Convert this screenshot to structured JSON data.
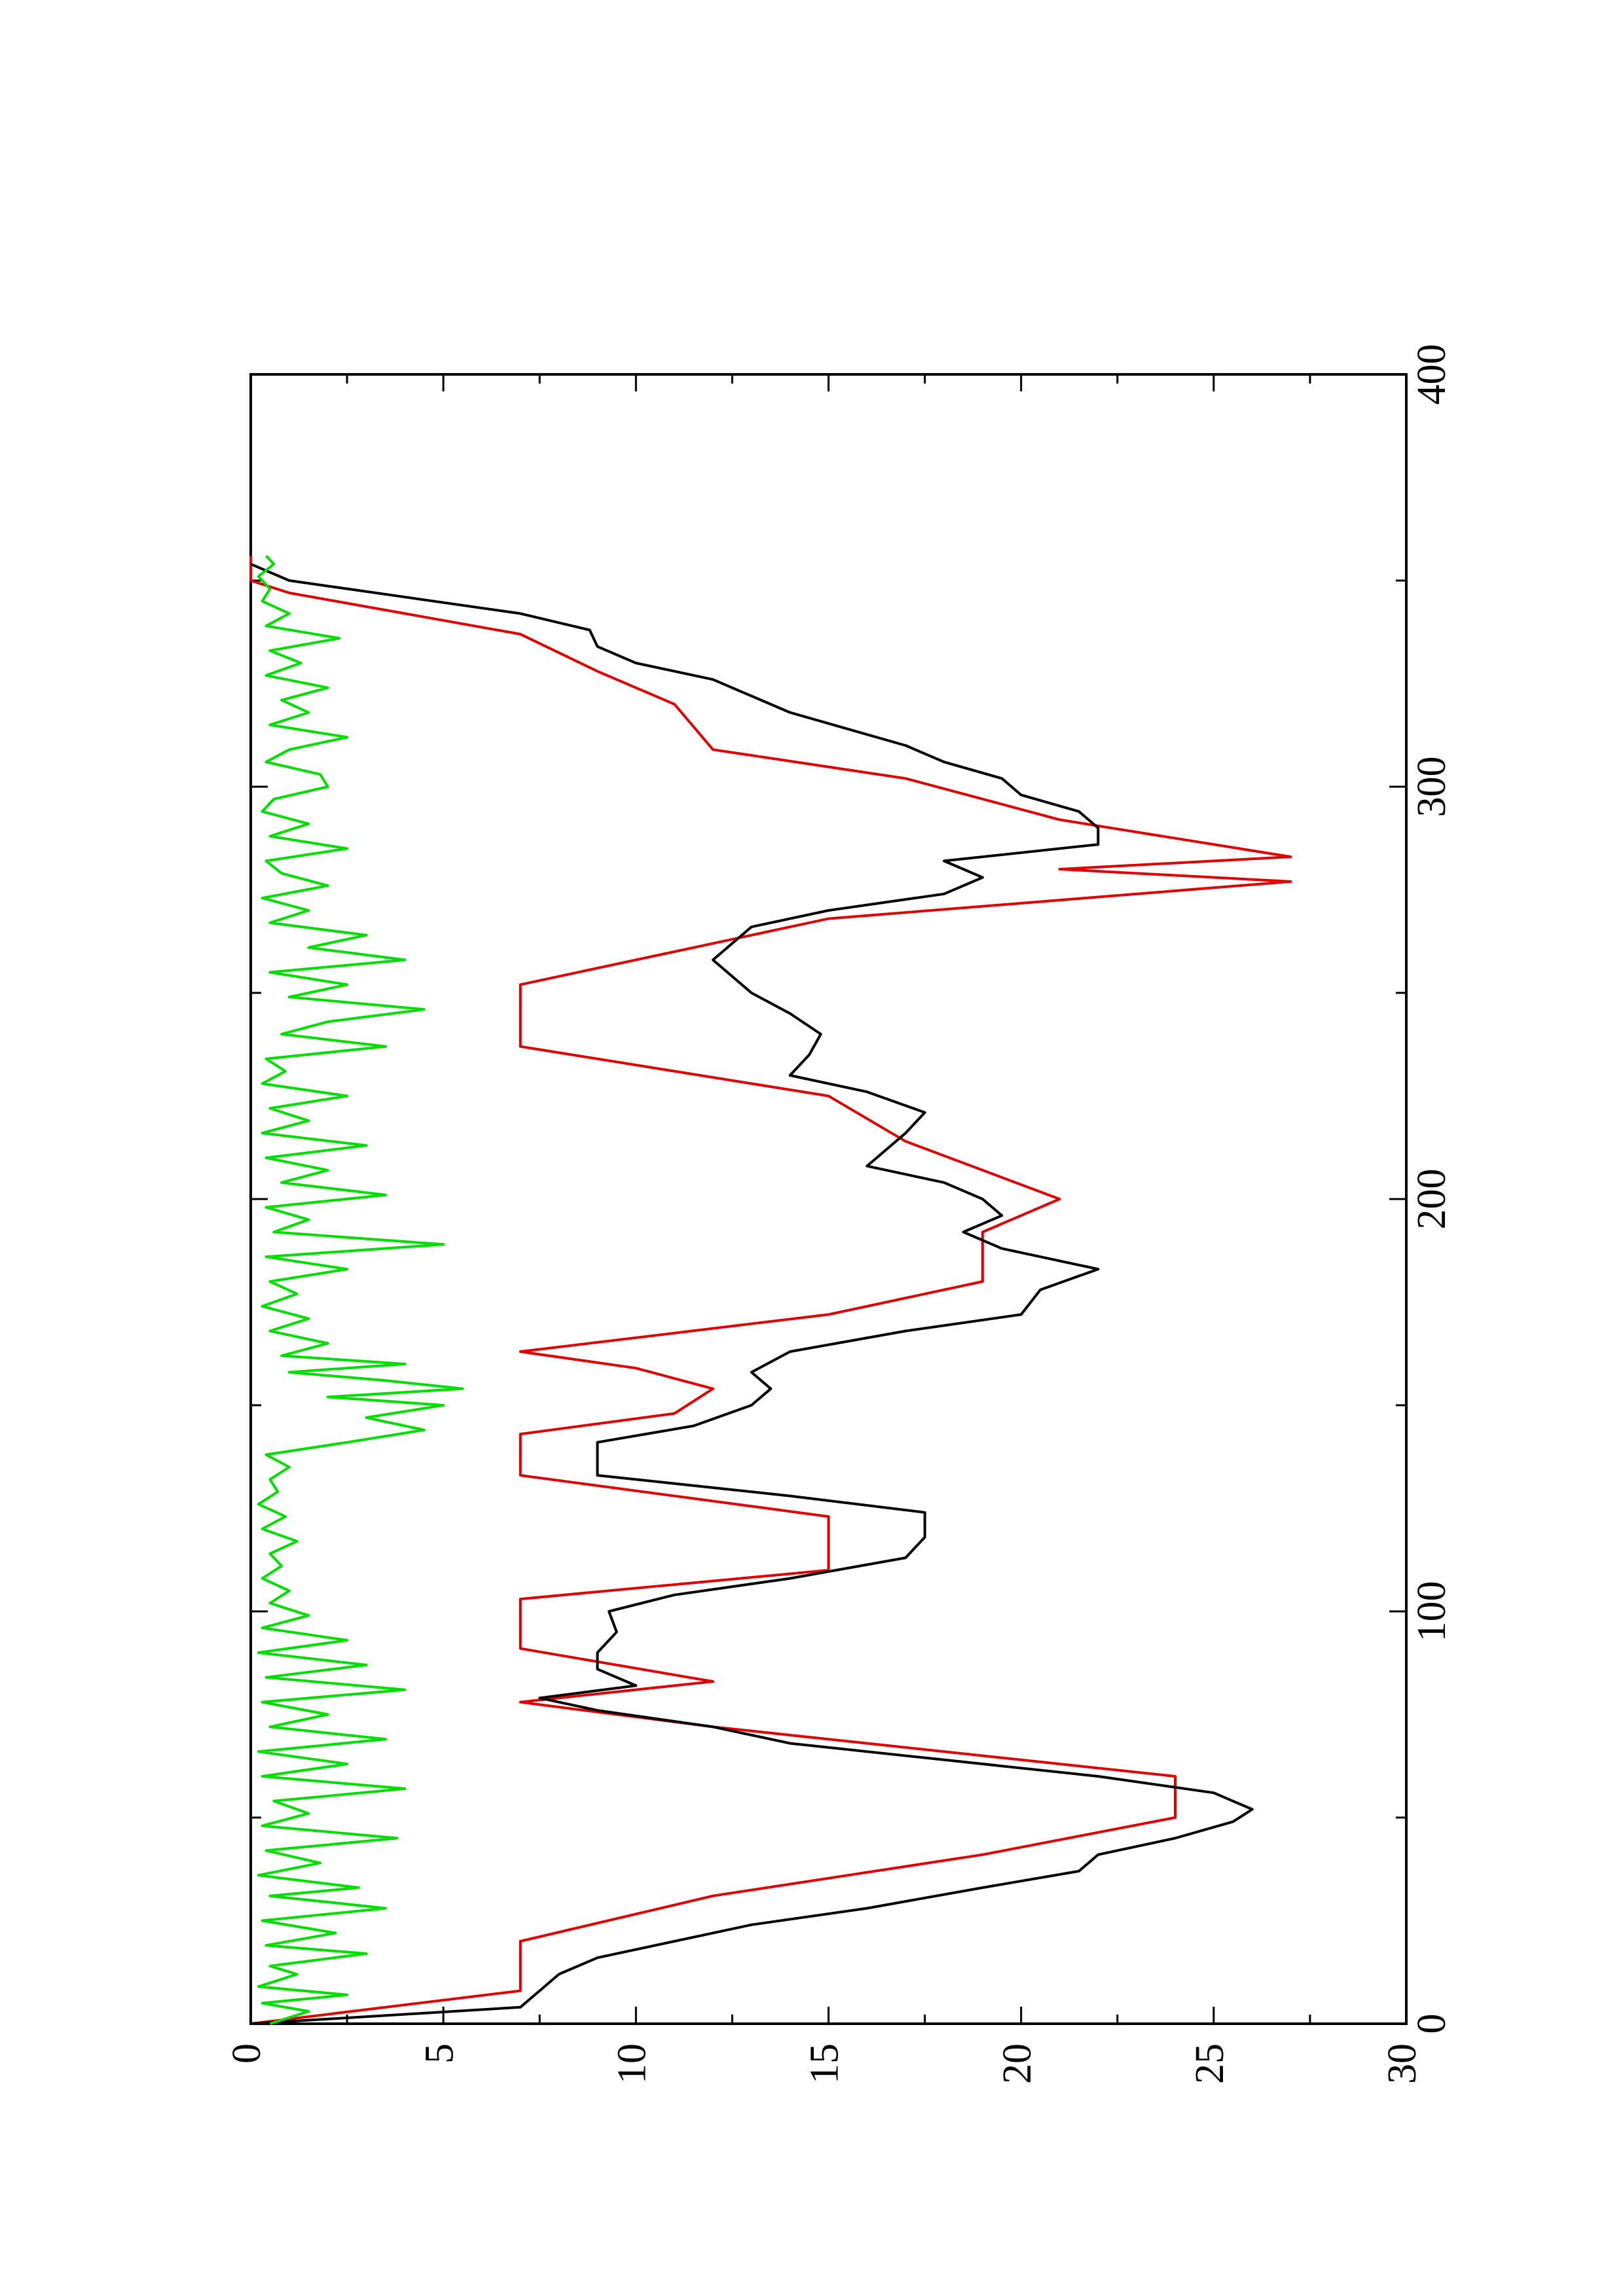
{
  "chart_data": {
    "type": "line",
    "orientation": "rotated 90 degrees counter-clockwise (x axis runs bottom-to-top, y axis runs left-to-right)",
    "title": "",
    "xlabel": "",
    "ylabel": "",
    "xlim": [
      0,
      400
    ],
    "ylim": [
      0,
      30
    ],
    "x_ticks": [
      0,
      100,
      200,
      300,
      400
    ],
    "y_ticks": [
      0,
      5,
      10,
      15,
      20,
      25,
      30
    ],
    "x_tick_labels": [
      "0",
      "100",
      "200",
      "300",
      "400"
    ],
    "y_tick_labels": [
      "0",
      "5",
      "10",
      "15",
      "20",
      "25",
      "30"
    ],
    "grid": false,
    "legend": "none",
    "series": [
      {
        "color": "#e00000",
        "x": [
          0,
          8,
          20,
          31,
          41,
          50,
          60,
          72,
          78,
          83,
          91,
          103,
          110,
          123,
          133,
          143,
          148,
          154,
          159,
          163,
          172,
          180,
          192,
          200,
          207,
          214,
          225,
          237,
          252,
          262,
          268,
          277,
          280,
          283,
          292,
          302,
          309,
          320,
          328,
          337,
          347,
          350,
          356
        ],
        "y": [
          0,
          7,
          7,
          12,
          19,
          24,
          24,
          12,
          7,
          12,
          7,
          7,
          15,
          15,
          7,
          7,
          11,
          12,
          10,
          7,
          15,
          19,
          19,
          21,
          19,
          17,
          15,
          7,
          7,
          12,
          15,
          27,
          21,
          27,
          21,
          17,
          12,
          11,
          9,
          7,
          1,
          0,
          0
        ]
      },
      {
        "color": "#000000",
        "x": [
          0,
          4,
          8,
          12,
          16,
          20,
          24,
          28,
          33,
          37,
          41,
          45,
          49,
          52,
          56,
          60,
          64,
          68,
          72,
          76,
          79,
          82,
          86,
          90,
          95,
          100,
          104,
          108,
          113,
          118,
          124,
          128,
          133,
          137,
          141,
          145,
          150,
          154,
          158,
          163,
          168,
          172,
          178,
          183,
          188,
          192,
          196,
          200,
          204,
          208,
          212,
          216,
          221,
          226,
          230,
          235,
          240,
          245,
          250,
          254,
          258,
          262,
          266,
          270,
          274,
          278,
          282,
          286,
          290,
          294,
          298,
          302,
          306,
          310,
          314,
          318,
          322,
          326,
          330,
          334,
          338,
          342,
          346,
          350,
          354
        ],
        "y": [
          0,
          7,
          7.5,
          8,
          9,
          11,
          13,
          16,
          19,
          21.5,
          22,
          24,
          25.5,
          26,
          25,
          22,
          18,
          14,
          12,
          9,
          7.5,
          10,
          9,
          9,
          9.5,
          9.3,
          11,
          14,
          17,
          17.5,
          17.5,
          14,
          9,
          9,
          9,
          11.5,
          13,
          13.5,
          13,
          14,
          17,
          20,
          20.5,
          22,
          19.5,
          18.5,
          19.5,
          19,
          18,
          16,
          16.5,
          17,
          17.5,
          16,
          14,
          14.5,
          14.8,
          14,
          13,
          12.5,
          12,
          12.5,
          13,
          15,
          18,
          19,
          18,
          22,
          22,
          21.5,
          20,
          19.5,
          18,
          17,
          15.5,
          14,
          13,
          12,
          10,
          9,
          8.8,
          7,
          4,
          1,
          0
        ]
      },
      {
        "color": "#00dd00",
        "x": [
          0,
          3,
          5,
          7,
          9,
          12,
          14,
          17,
          19,
          22,
          25,
          28,
          31,
          33,
          36,
          39,
          42,
          45,
          48,
          51,
          54,
          57,
          60,
          63,
          66,
          69,
          72,
          75,
          78,
          81,
          84,
          87,
          90,
          93,
          96,
          99,
          102,
          105,
          108,
          111,
          114,
          117,
          120,
          123,
          126,
          129,
          132,
          135,
          138,
          141,
          144,
          147,
          150,
          152,
          154,
          156,
          158,
          160,
          162,
          165,
          168,
          171,
          174,
          177,
          180,
          183,
          186,
          189,
          192,
          195,
          198,
          201,
          204,
          207,
          210,
          213,
          216,
          219,
          222,
          225,
          228,
          231,
          234,
          237,
          240,
          243,
          246,
          249,
          252,
          255,
          258,
          261,
          264,
          267,
          270,
          273,
          276,
          279,
          282,
          285,
          288,
          291,
          294,
          297,
          300,
          303,
          306,
          309,
          312,
          315,
          318,
          321,
          324,
          327,
          330,
          333,
          336,
          339,
          342,
          345,
          348,
          351,
          354,
          356
        ],
        "y": [
          0.5,
          1.5,
          0.3,
          2.5,
          0.2,
          1.2,
          0.5,
          3,
          0.4,
          2.2,
          0.3,
          3.5,
          0.5,
          2.8,
          0.2,
          1.8,
          0.4,
          3.8,
          0.3,
          1.5,
          0.6,
          4,
          0.3,
          2.5,
          0.2,
          3.5,
          0.5,
          2,
          0.3,
          4,
          0.4,
          3,
          0.2,
          2.5,
          0.3,
          1.5,
          0.5,
          1,
          0.3,
          0.8,
          0.5,
          1.2,
          0.3,
          0.9,
          0.2,
          0.7,
          0.5,
          1,
          0.4,
          2.5,
          4.5,
          3,
          5,
          2,
          5.5,
          3.5,
          1,
          4,
          0.8,
          2,
          0.5,
          1.5,
          0.3,
          1.2,
          0.5,
          2.5,
          0.4,
          5,
          0.6,
          1.5,
          0.4,
          3.5,
          0.8,
          2,
          0.4,
          3,
          0.3,
          1.5,
          0.5,
          2.5,
          0.3,
          0.9,
          0.4,
          3.5,
          0.8,
          2,
          4.5,
          1,
          2.5,
          0.5,
          4,
          1.5,
          3,
          0.5,
          1.5,
          0.3,
          2,
          0.8,
          0.4,
          2.5,
          0.5,
          1.5,
          0.3,
          0.6,
          2,
          1.8,
          0.4,
          1,
          2.5,
          0.5,
          1.5,
          0.8,
          2,
          0.4,
          1.3,
          0.5,
          2.3,
          0.4,
          1,
          0.3,
          0.5,
          0.2,
          0.6,
          0.4
        ]
      }
    ]
  }
}
